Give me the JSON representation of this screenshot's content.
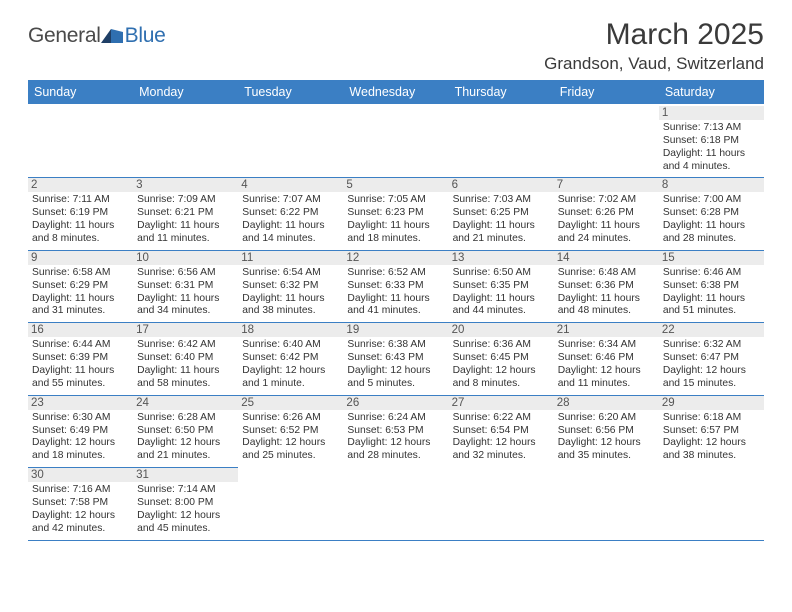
{
  "brand": {
    "name_a": "General",
    "name_b": "Blue"
  },
  "title": "March 2025",
  "location": "Grandson, Vaud, Switzerland",
  "colors": {
    "header_bg": "#3b7fc4",
    "header_text": "#ffffff",
    "rule": "#3b7fc4",
    "daynum_bg": "#ececec",
    "text": "#333333",
    "brand_blue": "#2f6fb0"
  },
  "weekdays": [
    "Sunday",
    "Monday",
    "Tuesday",
    "Wednesday",
    "Thursday",
    "Friday",
    "Saturday"
  ],
  "weeks": [
    [
      null,
      null,
      null,
      null,
      null,
      null,
      {
        "n": "1",
        "sr": "Sunrise: 7:13 AM",
        "ss": "Sunset: 6:18 PM",
        "dl": "Daylight: 11 hours and 4 minutes."
      }
    ],
    [
      {
        "n": "2",
        "sr": "Sunrise: 7:11 AM",
        "ss": "Sunset: 6:19 PM",
        "dl": "Daylight: 11 hours and 8 minutes."
      },
      {
        "n": "3",
        "sr": "Sunrise: 7:09 AM",
        "ss": "Sunset: 6:21 PM",
        "dl": "Daylight: 11 hours and 11 minutes."
      },
      {
        "n": "4",
        "sr": "Sunrise: 7:07 AM",
        "ss": "Sunset: 6:22 PM",
        "dl": "Daylight: 11 hours and 14 minutes."
      },
      {
        "n": "5",
        "sr": "Sunrise: 7:05 AM",
        "ss": "Sunset: 6:23 PM",
        "dl": "Daylight: 11 hours and 18 minutes."
      },
      {
        "n": "6",
        "sr": "Sunrise: 7:03 AM",
        "ss": "Sunset: 6:25 PM",
        "dl": "Daylight: 11 hours and 21 minutes."
      },
      {
        "n": "7",
        "sr": "Sunrise: 7:02 AM",
        "ss": "Sunset: 6:26 PM",
        "dl": "Daylight: 11 hours and 24 minutes."
      },
      {
        "n": "8",
        "sr": "Sunrise: 7:00 AM",
        "ss": "Sunset: 6:28 PM",
        "dl": "Daylight: 11 hours and 28 minutes."
      }
    ],
    [
      {
        "n": "9",
        "sr": "Sunrise: 6:58 AM",
        "ss": "Sunset: 6:29 PM",
        "dl": "Daylight: 11 hours and 31 minutes."
      },
      {
        "n": "10",
        "sr": "Sunrise: 6:56 AM",
        "ss": "Sunset: 6:31 PM",
        "dl": "Daylight: 11 hours and 34 minutes."
      },
      {
        "n": "11",
        "sr": "Sunrise: 6:54 AM",
        "ss": "Sunset: 6:32 PM",
        "dl": "Daylight: 11 hours and 38 minutes."
      },
      {
        "n": "12",
        "sr": "Sunrise: 6:52 AM",
        "ss": "Sunset: 6:33 PM",
        "dl": "Daylight: 11 hours and 41 minutes."
      },
      {
        "n": "13",
        "sr": "Sunrise: 6:50 AM",
        "ss": "Sunset: 6:35 PM",
        "dl": "Daylight: 11 hours and 44 minutes."
      },
      {
        "n": "14",
        "sr": "Sunrise: 6:48 AM",
        "ss": "Sunset: 6:36 PM",
        "dl": "Daylight: 11 hours and 48 minutes."
      },
      {
        "n": "15",
        "sr": "Sunrise: 6:46 AM",
        "ss": "Sunset: 6:38 PM",
        "dl": "Daylight: 11 hours and 51 minutes."
      }
    ],
    [
      {
        "n": "16",
        "sr": "Sunrise: 6:44 AM",
        "ss": "Sunset: 6:39 PM",
        "dl": "Daylight: 11 hours and 55 minutes."
      },
      {
        "n": "17",
        "sr": "Sunrise: 6:42 AM",
        "ss": "Sunset: 6:40 PM",
        "dl": "Daylight: 11 hours and 58 minutes."
      },
      {
        "n": "18",
        "sr": "Sunrise: 6:40 AM",
        "ss": "Sunset: 6:42 PM",
        "dl": "Daylight: 12 hours and 1 minute."
      },
      {
        "n": "19",
        "sr": "Sunrise: 6:38 AM",
        "ss": "Sunset: 6:43 PM",
        "dl": "Daylight: 12 hours and 5 minutes."
      },
      {
        "n": "20",
        "sr": "Sunrise: 6:36 AM",
        "ss": "Sunset: 6:45 PM",
        "dl": "Daylight: 12 hours and 8 minutes."
      },
      {
        "n": "21",
        "sr": "Sunrise: 6:34 AM",
        "ss": "Sunset: 6:46 PM",
        "dl": "Daylight: 12 hours and 11 minutes."
      },
      {
        "n": "22",
        "sr": "Sunrise: 6:32 AM",
        "ss": "Sunset: 6:47 PM",
        "dl": "Daylight: 12 hours and 15 minutes."
      }
    ],
    [
      {
        "n": "23",
        "sr": "Sunrise: 6:30 AM",
        "ss": "Sunset: 6:49 PM",
        "dl": "Daylight: 12 hours and 18 minutes."
      },
      {
        "n": "24",
        "sr": "Sunrise: 6:28 AM",
        "ss": "Sunset: 6:50 PM",
        "dl": "Daylight: 12 hours and 21 minutes."
      },
      {
        "n": "25",
        "sr": "Sunrise: 6:26 AM",
        "ss": "Sunset: 6:52 PM",
        "dl": "Daylight: 12 hours and 25 minutes."
      },
      {
        "n": "26",
        "sr": "Sunrise: 6:24 AM",
        "ss": "Sunset: 6:53 PM",
        "dl": "Daylight: 12 hours and 28 minutes."
      },
      {
        "n": "27",
        "sr": "Sunrise: 6:22 AM",
        "ss": "Sunset: 6:54 PM",
        "dl": "Daylight: 12 hours and 32 minutes."
      },
      {
        "n": "28",
        "sr": "Sunrise: 6:20 AM",
        "ss": "Sunset: 6:56 PM",
        "dl": "Daylight: 12 hours and 35 minutes."
      },
      {
        "n": "29",
        "sr": "Sunrise: 6:18 AM",
        "ss": "Sunset: 6:57 PM",
        "dl": "Daylight: 12 hours and 38 minutes."
      }
    ],
    [
      {
        "n": "30",
        "sr": "Sunrise: 7:16 AM",
        "ss": "Sunset: 7:58 PM",
        "dl": "Daylight: 12 hours and 42 minutes."
      },
      {
        "n": "31",
        "sr": "Sunrise: 7:14 AM",
        "ss": "Sunset: 8:00 PM",
        "dl": "Daylight: 12 hours and 45 minutes."
      },
      null,
      null,
      null,
      null,
      null
    ]
  ]
}
